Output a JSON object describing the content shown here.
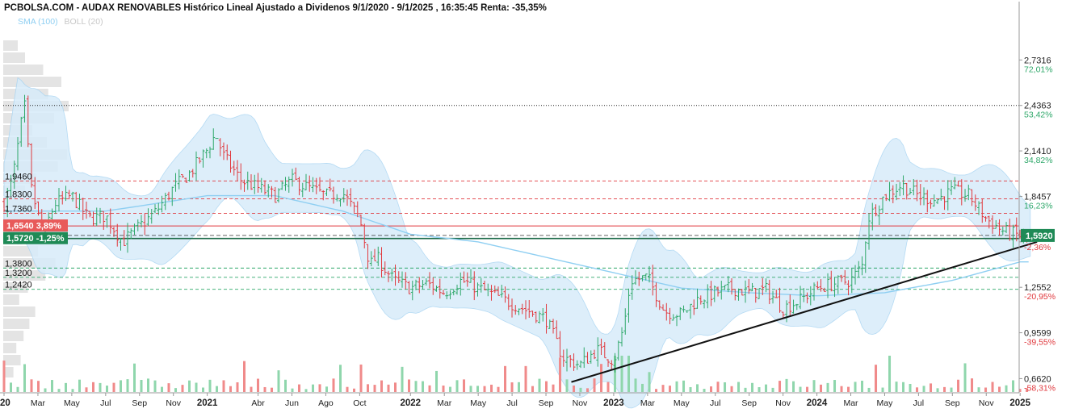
{
  "header": {
    "title": "PCBOLSA.COM - AUDAX RENOVABLES Histórico Lineal Ajustado a Dividenos 9/1/2020 - 9/1/2025 , 16:35:45 Renta: -35,35%"
  },
  "legend": [
    {
      "label": "SMA (100)",
      "color": "#8fcff2"
    },
    {
      "label": "BOLL (20)",
      "color": "#c8c8c8"
    }
  ],
  "colors": {
    "up": "#2fa86a",
    "down": "#e0393e",
    "band": "#d8ecfa",
    "sma": "#8fcff2",
    "trend": "#111111",
    "badge_green": "#1f8a56",
    "badge_red": "#e85a5a"
  },
  "chart_data": {
    "type": "candlestick",
    "ylim": [
      0.57,
      2.9
    ],
    "x_axis": {
      "labels": [
        {
          "text": "20",
          "month": 0,
          "bold": true
        },
        {
          "text": "Mar",
          "month": 2,
          "bold": false
        },
        {
          "text": "May",
          "month": 4,
          "bold": false
        },
        {
          "text": "Jul",
          "month": 6,
          "bold": false
        },
        {
          "text": "Sep",
          "month": 8,
          "bold": false
        },
        {
          "text": "Nov",
          "month": 10,
          "bold": false
        },
        {
          "text": "2021",
          "month": 12,
          "bold": true
        },
        {
          "text": "Abr",
          "month": 15,
          "bold": false
        },
        {
          "text": "Jun",
          "month": 17,
          "bold": false
        },
        {
          "text": "Ago",
          "month": 19,
          "bold": false
        },
        {
          "text": "Oct",
          "month": 21,
          "bold": false
        },
        {
          "text": "2022",
          "month": 24,
          "bold": true
        },
        {
          "text": "Mar",
          "month": 26,
          "bold": false
        },
        {
          "text": "May",
          "month": 28,
          "bold": false
        },
        {
          "text": "Jul",
          "month": 30,
          "bold": false
        },
        {
          "text": "Sep",
          "month": 32,
          "bold": false
        },
        {
          "text": "Nov",
          "month": 34,
          "bold": false
        },
        {
          "text": "2023",
          "month": 36,
          "bold": true
        },
        {
          "text": "Mar",
          "month": 38,
          "bold": false
        },
        {
          "text": "May",
          "month": 40,
          "bold": false
        },
        {
          "text": "Jul",
          "month": 42,
          "bold": false
        },
        {
          "text": "Sep",
          "month": 44,
          "bold": false
        },
        {
          "text": "Nov",
          "month": 46,
          "bold": false
        },
        {
          "text": "2024",
          "month": 48,
          "bold": true
        },
        {
          "text": "Mar",
          "month": 50,
          "bold": false
        },
        {
          "text": "May",
          "month": 52,
          "bold": false
        },
        {
          "text": "Jul",
          "month": 54,
          "bold": false
        },
        {
          "text": "Sep",
          "month": 56,
          "bold": false
        },
        {
          "text": "Nov",
          "month": 58,
          "bold": false
        },
        {
          "text": "2025",
          "month": 60,
          "bold": true
        }
      ]
    },
    "right_axis": [
      {
        "price": "2,7316",
        "pct": "72,01%",
        "value": 2.7316,
        "pct_color": "#2fa86a"
      },
      {
        "price": "2,4363",
        "pct": "53,42%",
        "value": 2.4363,
        "pct_color": "#2fa86a"
      },
      {
        "price": "2,1410",
        "pct": "34,82%",
        "value": 2.141,
        "pct_color": "#2fa86a"
      },
      {
        "price": "1,8457",
        "pct": "16,23%",
        "value": 1.8457,
        "pct_color": "#2fa86a"
      },
      {
        "price": "",
        "pct": "-2,36%",
        "value": 1.5504,
        "pct_color": "#e0393e"
      },
      {
        "price": "1,2552",
        "pct": "-20,95%",
        "value": 1.2552,
        "pct_color": "#e0393e"
      },
      {
        "price": "0,9599",
        "pct": "-39,55%",
        "value": 0.9599,
        "pct_color": "#e0393e"
      },
      {
        "price": "0,6620",
        "pct": "-58,31%",
        "value": 0.662,
        "pct_color": "#e0393e"
      }
    ],
    "left_levels": [
      {
        "label": "1,9460",
        "value": 1.946
      },
      {
        "label": "1,8300",
        "value": 1.83
      },
      {
        "label": "1,7360",
        "value": 1.736
      },
      {
        "label": "1,3800",
        "value": 1.38
      },
      {
        "label": "1,3200",
        "value": 1.32
      },
      {
        "label": "1,2420",
        "value": 1.242
      }
    ],
    "dotted_level": 2.4363,
    "badges": [
      {
        "text": "1,6540  3,89%",
        "value": 1.654,
        "color": "#e85a5a"
      },
      {
        "text": "1,5720  -1,25%",
        "value": 1.572,
        "color": "#1f8a56"
      }
    ],
    "current_price": {
      "text": "1,5920",
      "value": 1.592
    },
    "anchors": [
      [
        0,
        1.8
      ],
      [
        0.5,
        1.95
      ],
      [
        1.2,
        2.45
      ],
      [
        1.6,
        1.9
      ],
      [
        2.3,
        1.6
      ],
      [
        3,
        1.8
      ],
      [
        4,
        1.85
      ],
      [
        5,
        1.7
      ],
      [
        6,
        1.72
      ],
      [
        7,
        1.55
      ],
      [
        8,
        1.65
      ],
      [
        9,
        1.75
      ],
      [
        10,
        1.9
      ],
      [
        11,
        2.0
      ],
      [
        12,
        2.15
      ],
      [
        12.5,
        2.25
      ],
      [
        13,
        2.1
      ],
      [
        14,
        1.95
      ],
      [
        15,
        1.9
      ],
      [
        16,
        1.85
      ],
      [
        17,
        1.95
      ],
      [
        18,
        1.9
      ],
      [
        19,
        1.85
      ],
      [
        20,
        1.87
      ],
      [
        21,
        1.7
      ],
      [
        21.6,
        1.4
      ],
      [
        22,
        1.45
      ],
      [
        23,
        1.3
      ],
      [
        24,
        1.25
      ],
      [
        25,
        1.28
      ],
      [
        26,
        1.22
      ],
      [
        27,
        1.3
      ],
      [
        28,
        1.25
      ],
      [
        29,
        1.2
      ],
      [
        30,
        1.15
      ],
      [
        31,
        1.1
      ],
      [
        32,
        1.05
      ],
      [
        33,
        0.8
      ],
      [
        34,
        0.75
      ],
      [
        35,
        0.85
      ],
      [
        36,
        0.78
      ],
      [
        36.6,
        1.0
      ],
      [
        37,
        1.3
      ],
      [
        38,
        1.32
      ],
      [
        39,
        1.1
      ],
      [
        40,
        1.08
      ],
      [
        41,
        1.18
      ],
      [
        42,
        1.22
      ],
      [
        43,
        1.25
      ],
      [
        44,
        1.22
      ],
      [
        45,
        1.24
      ],
      [
        46,
        1.12
      ],
      [
        47,
        1.17
      ],
      [
        48,
        1.25
      ],
      [
        49,
        1.28
      ],
      [
        50,
        1.3
      ],
      [
        50.7,
        1.4
      ],
      [
        51,
        1.7
      ],
      [
        52,
        1.85
      ],
      [
        53,
        1.92
      ],
      [
        54,
        1.85
      ],
      [
        55,
        1.82
      ],
      [
        56,
        1.88
      ],
      [
        57,
        1.85
      ],
      [
        58,
        1.7
      ],
      [
        59,
        1.62
      ],
      [
        60,
        1.59
      ]
    ],
    "sma_anchors": [
      [
        0,
        1.75
      ],
      [
        6,
        1.75
      ],
      [
        12,
        1.85
      ],
      [
        16,
        1.85
      ],
      [
        20,
        1.75
      ],
      [
        24,
        1.6
      ],
      [
        28,
        1.55
      ],
      [
        32,
        1.45
      ],
      [
        36,
        1.35
      ],
      [
        40,
        1.25
      ],
      [
        44,
        1.22
      ],
      [
        48,
        1.2
      ],
      [
        52,
        1.22
      ],
      [
        56,
        1.3
      ],
      [
        60,
        1.42
      ]
    ],
    "trendline": {
      "start": [
        33.5,
        0.64
      ],
      "end": [
        61,
        1.55
      ]
    },
    "volume": {
      "max": 100
    }
  }
}
